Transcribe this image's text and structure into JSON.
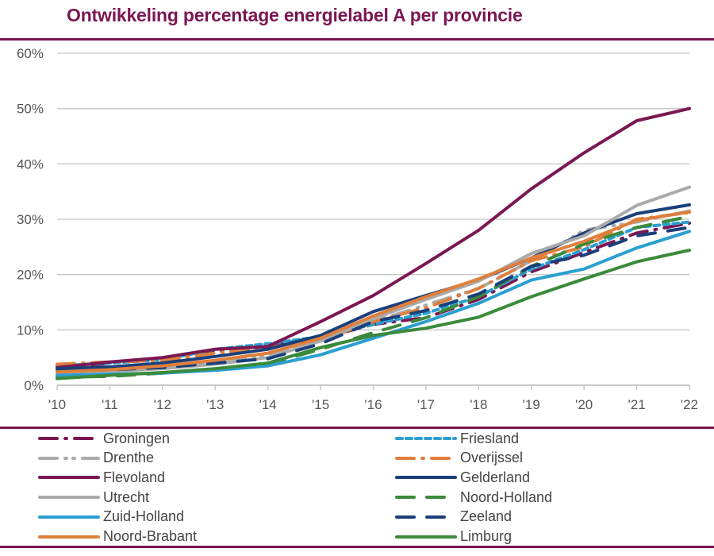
{
  "title": "Ontwikkeling percentage energielabel A per provincie",
  "chart_data": {
    "type": "line",
    "title": "Ontwikkeling percentage energielabel A per provincie",
    "xlabel": "",
    "ylabel": "",
    "x": [
      "'10",
      "'11",
      "'12",
      "'13",
      "'14",
      "'15",
      "'16",
      "'17",
      "'18",
      "'19",
      "'20",
      "'21",
      "'22"
    ],
    "yticks": [
      "0%",
      "10%",
      "20%",
      "30%",
      "40%",
      "50%",
      "60%"
    ],
    "ylim": [
      0,
      60
    ],
    "grid": true,
    "legend_position": "bottom",
    "series": [
      {
        "name": "Groningen",
        "color": "#7a1753",
        "dash": "long-dot",
        "values": [
          3.0,
          4.0,
          4.8,
          6.2,
          7.2,
          8.5,
          11.0,
          12.2,
          15.5,
          20.5,
          24.0,
          27.5,
          29.3
        ]
      },
      {
        "name": "Friesland",
        "color": "#2a9fd0",
        "dash": "dash",
        "values": [
          3.5,
          4.0,
          4.6,
          6.5,
          7.5,
          8.8,
          11.0,
          13.0,
          16.0,
          21.0,
          24.5,
          28.5,
          29.5
        ]
      },
      {
        "name": "Drenthe",
        "color": "#aaaaaa",
        "dash": "long-dot-dot",
        "values": [
          2.5,
          2.8,
          3.2,
          4.2,
          5.5,
          8.0,
          11.5,
          14.5,
          17.5,
          22.5,
          28.0,
          29.5,
          31.5
        ]
      },
      {
        "name": "Overijssel",
        "color": "#e07f3c",
        "dash": "long-dot",
        "values": [
          3.8,
          4.2,
          4.5,
          5.8,
          6.8,
          8.2,
          11.5,
          14.0,
          17.5,
          22.5,
          25.0,
          30.0,
          31.2
        ]
      },
      {
        "name": "Flevoland",
        "color": "#7a1753",
        "dash": "solid",
        "values": [
          3.2,
          4.2,
          5.0,
          6.5,
          7.0,
          11.5,
          16.2,
          22.0,
          28.0,
          35.5,
          42.0,
          47.8,
          50.0
        ]
      },
      {
        "name": "Gelderland",
        "color": "#1b3f7a",
        "dash": "solid",
        "values": [
          3.0,
          3.3,
          4.0,
          5.2,
          6.5,
          9.0,
          13.3,
          16.2,
          19.0,
          23.0,
          27.5,
          31.0,
          32.6
        ]
      },
      {
        "name": "Utrecht",
        "color": "#aaaaaa",
        "dash": "solid",
        "values": [
          2.2,
          2.5,
          3.0,
          3.8,
          5.0,
          8.0,
          12.0,
          15.5,
          18.8,
          23.8,
          27.0,
          32.5,
          35.8
        ]
      },
      {
        "name": "Noord-Holland",
        "color": "#3b8a3b",
        "dash": "long-dash",
        "values": [
          1.5,
          1.6,
          2.2,
          2.8,
          3.8,
          6.5,
          9.5,
          12.2,
          16.0,
          21.5,
          25.5,
          28.5,
          30.5
        ]
      },
      {
        "name": "Zuid-Holland",
        "color": "#2a9fd0",
        "dash": "solid",
        "values": [
          1.8,
          2.0,
          2.2,
          2.7,
          3.5,
          5.5,
          8.5,
          11.5,
          14.8,
          19.0,
          21.0,
          24.8,
          27.8
        ]
      },
      {
        "name": "Zeeland",
        "color": "#1b3f7a",
        "dash": "long-dash",
        "values": [
          2.5,
          2.8,
          3.2,
          4.0,
          4.8,
          7.5,
          11.5,
          13.5,
          16.5,
          21.5,
          23.5,
          27.0,
          28.5
        ]
      },
      {
        "name": "Noord-Brabant",
        "color": "#e07f3c",
        "dash": "solid",
        "values": [
          2.4,
          2.8,
          3.5,
          4.5,
          5.8,
          8.5,
          12.5,
          16.0,
          19.2,
          23.0,
          26.0,
          29.8,
          31.3
        ]
      },
      {
        "name": "Limburg",
        "color": "#3b8a3b",
        "dash": "solid",
        "values": [
          1.2,
          1.8,
          2.3,
          3.0,
          4.0,
          6.8,
          9.0,
          10.3,
          12.3,
          16.0,
          19.2,
          22.3,
          24.4
        ]
      }
    ]
  },
  "legend": {
    "left": [
      "Groningen",
      "Drenthe",
      "Flevoland",
      "Utrecht",
      "Zuid-Holland",
      "Noord-Brabant"
    ],
    "right": [
      "Friesland",
      "Overijssel",
      "Gelderland",
      "Noord-Holland",
      "Zeeland",
      "Limburg"
    ]
  }
}
